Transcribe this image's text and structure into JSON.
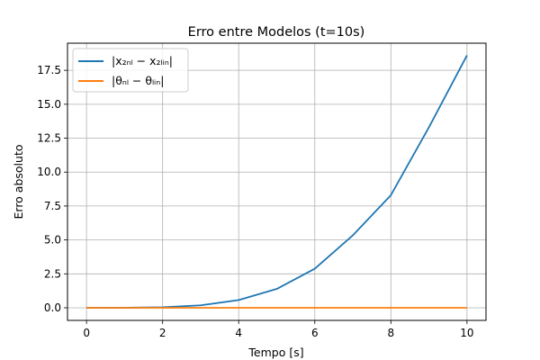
{
  "chart_data": {
    "type": "line",
    "title": "Erro entre Modelos (t=10s)",
    "xlabel": "Tempo [s]",
    "ylabel": "Erro absoluto",
    "xlim": [
      -0.5,
      10.5
    ],
    "ylim": [
      -0.93,
      19.5
    ],
    "xticks": [
      0,
      2,
      4,
      6,
      8,
      10
    ],
    "xtick_labels": [
      "0",
      "2",
      "4",
      "6",
      "8",
      "10"
    ],
    "yticks": [
      0,
      2.5,
      5,
      7.5,
      10,
      12.5,
      15,
      17.5
    ],
    "ytick_labels": [
      "0.0",
      "2.5",
      "5.0",
      "7.5",
      "10.0",
      "12.5",
      "15.0",
      "17.5"
    ],
    "grid": true,
    "legend_position": "top-left",
    "series": [
      {
        "name": "|x₂ₙₗ − x₂ₗᵢₙ|",
        "color": "#1f77b4",
        "x": [
          0,
          1,
          2,
          3,
          4,
          5,
          6,
          7,
          8,
          9,
          10
        ],
        "y": [
          0,
          0.002,
          0.036,
          0.18,
          0.57,
          1.39,
          2.88,
          5.34,
          8.3,
          13.3,
          18.6
        ]
      },
      {
        "name": "|θₙₗ − θₗᵢₙ|",
        "color": "#ff7f0e",
        "x": [
          0,
          1,
          2,
          3,
          4,
          5,
          6,
          7,
          8,
          9,
          10
        ],
        "y": [
          0,
          0,
          0,
          0,
          0,
          0,
          0,
          0,
          0,
          0,
          0
        ]
      }
    ]
  }
}
